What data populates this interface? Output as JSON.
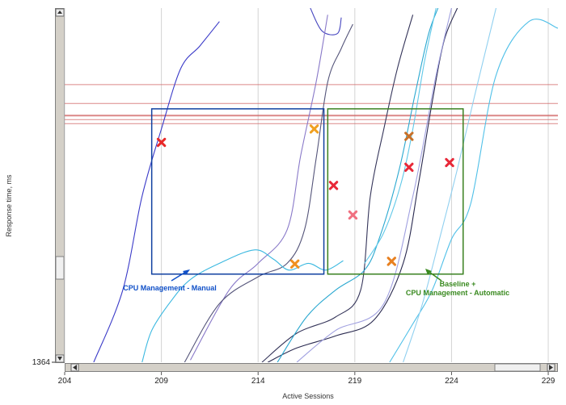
{
  "chart_data": {
    "type": "line",
    "title": "",
    "xlabel": "Active Sessions",
    "ylabel": "Response time, ms",
    "xlim": [
      204,
      229.5
    ],
    "x_ticks": [
      204,
      209,
      214,
      219,
      224,
      229
    ],
    "y_tick_labels": [
      "1364"
    ],
    "grid": "vertical",
    "series": [
      {
        "color": "#3a3ac8",
        "points": [
          [
            205.5,
            1364
          ],
          [
            207,
            1900
          ],
          [
            208,
            2600
          ],
          [
            209,
            3100
          ],
          [
            210,
            3550
          ],
          [
            211,
            3720
          ],
          [
            212,
            3900
          ]
        ]
      },
      {
        "color": "#4848c0",
        "points": [
          [
            216.7,
            4000
          ],
          [
            217.3,
            3830
          ],
          [
            218.1,
            3810
          ],
          [
            218.3,
            3930
          ]
        ]
      },
      {
        "color": "#8878c8",
        "points": [
          [
            210.5,
            1380
          ],
          [
            212.5,
            1900
          ],
          [
            214,
            2100
          ],
          [
            215.5,
            2350
          ],
          [
            216.2,
            2900
          ],
          [
            217,
            3450
          ],
          [
            217.6,
            3950
          ]
        ]
      },
      {
        "color": "#55557a",
        "points": [
          [
            210.2,
            1364
          ],
          [
            212,
            1800
          ],
          [
            214,
            2000
          ],
          [
            215.5,
            2100
          ],
          [
            216.4,
            2350
          ],
          [
            217,
            2880
          ],
          [
            217.6,
            3450
          ],
          [
            218.3,
            3700
          ],
          [
            218.9,
            3880
          ]
        ]
      },
      {
        "color": "#35355a",
        "points": [
          [
            214.2,
            1364
          ],
          [
            216,
            1580
          ],
          [
            218,
            1700
          ],
          [
            219.3,
            1900
          ],
          [
            219.8,
            2600
          ],
          [
            220.5,
            3100
          ],
          [
            221.2,
            3550
          ],
          [
            222,
            3950
          ]
        ]
      },
      {
        "color": "#2a2a50",
        "points": [
          [
            214.5,
            1364
          ],
          [
            216,
            1470
          ],
          [
            218,
            1560
          ],
          [
            220,
            1680
          ],
          [
            221.5,
            2100
          ],
          [
            222.3,
            2700
          ],
          [
            223,
            3300
          ],
          [
            223.6,
            3750
          ],
          [
            224.3,
            4000
          ]
        ]
      },
      {
        "color": "#3ab8e0",
        "points": [
          [
            208,
            1364
          ],
          [
            208.5,
            1600
          ],
          [
            209.5,
            1820
          ],
          [
            210.5,
            1980
          ],
          [
            212,
            2100
          ],
          [
            213.8,
            2200
          ],
          [
            214.8,
            2130
          ],
          [
            215.6,
            2050
          ],
          [
            216.6,
            2100
          ],
          [
            217.5,
            2050
          ],
          [
            218.4,
            2120
          ]
        ]
      },
      {
        "color": "#2aa8d0",
        "points": [
          [
            215,
            1364
          ],
          [
            216.5,
            1700
          ],
          [
            218,
            1900
          ],
          [
            219.5,
            2050
          ],
          [
            220.3,
            2300
          ],
          [
            221.3,
            2800
          ],
          [
            222.1,
            3350
          ],
          [
            222.8,
            3800
          ],
          [
            223.3,
            4000
          ]
        ]
      },
      {
        "color": "#60c8e8",
        "points": [
          [
            219.5,
            2100
          ],
          [
            220.5,
            2330
          ],
          [
            221.4,
            2700
          ],
          [
            222,
            3100
          ],
          [
            222.6,
            3600
          ],
          [
            223.2,
            4000
          ]
        ]
      },
      {
        "color": "#50c0e8",
        "points": [
          [
            220.8,
            1364
          ],
          [
            222,
            1650
          ],
          [
            223,
            1900
          ],
          [
            224,
            2280
          ],
          [
            225,
            2550
          ],
          [
            226.3,
            3500
          ],
          [
            228,
            3900
          ],
          [
            229.5,
            3850
          ]
        ]
      },
      {
        "color": "#90d0f0",
        "points": [
          [
            221.5,
            1364
          ],
          [
            222.5,
            1800
          ],
          [
            223.5,
            2350
          ],
          [
            224.3,
            2800
          ],
          [
            225.2,
            3350
          ],
          [
            226.3,
            4000
          ]
        ]
      },
      {
        "color": "#a0a0e0",
        "points": [
          [
            216,
            1364
          ],
          [
            218,
            1600
          ],
          [
            220.5,
            1800
          ],
          [
            222,
            2600
          ],
          [
            223.2,
            3500
          ],
          [
            224,
            4000
          ]
        ]
      }
    ],
    "threshold_lines": {
      "color": "#d06060",
      "values": [
        3430,
        3290,
        3200,
        3170,
        3140
      ]
    },
    "markers": [
      {
        "x": 209.0,
        "y": 3000,
        "color": "#e82828"
      },
      {
        "x": 216.9,
        "y": 3100,
        "color": "#f0a020"
      },
      {
        "x": 215.9,
        "y": 2095,
        "color": "#f09020"
      },
      {
        "x": 217.9,
        "y": 2680,
        "color": "#e82838"
      },
      {
        "x": 218.9,
        "y": 2460,
        "color": "#f07080"
      },
      {
        "x": 220.9,
        "y": 2115,
        "color": "#e88020"
      },
      {
        "x": 221.8,
        "y": 3045,
        "color": "#c87028"
      },
      {
        "x": 221.8,
        "y": 2815,
        "color": "#e82838"
      },
      {
        "x": 223.9,
        "y": 2850,
        "color": "#e82838"
      }
    ],
    "boxes": [
      {
        "label": "CPU Management - Manual",
        "color": "#1040a0",
        "x0": 208.5,
        "x1": 217.4,
        "y0": 2020,
        "y1": 3250
      },
      {
        "label": "Baseline +\nCPU Management - Automatic",
        "color": "#3a8020",
        "x0": 217.6,
        "x1": 224.6,
        "y0": 2020,
        "y1": 3250
      }
    ],
    "annotations": [
      {
        "text": "CPU Management - Manual",
        "color": "#1050c8"
      },
      {
        "text": "Baseline +",
        "color": "#3a8a20"
      },
      {
        "text": "CPU Management - Automatic",
        "color": "#3a8a20"
      }
    ]
  }
}
